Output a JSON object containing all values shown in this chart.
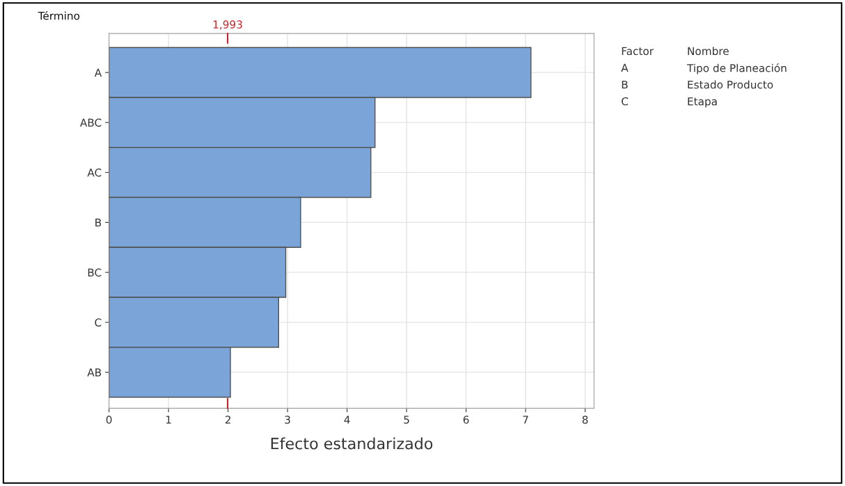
{
  "chart_data": {
    "type": "bar",
    "orientation": "horizontal",
    "ylabel": "Término",
    "xlabel": "Efecto estandarizado",
    "categories": [
      "A",
      "ABC",
      "AC",
      "B",
      "BC",
      "C",
      "AB"
    ],
    "values": [
      7.09,
      4.47,
      4.4,
      3.22,
      2.97,
      2.85,
      2.04
    ],
    "color": "#7ba4d8",
    "xlim": [
      0,
      8.15
    ],
    "xticks": [
      0,
      1,
      2,
      3,
      4,
      5,
      6,
      7,
      8
    ],
    "grid": true,
    "ref_lines": [
      {
        "axis": "x",
        "value": 1.993,
        "label": "1,993",
        "color": "#c0272d"
      }
    ],
    "annotations": [
      "Factor",
      "Nombre",
      "A",
      "Tipo de Planeación",
      "B",
      "Estado Producto",
      "C",
      "Etapa"
    ]
  }
}
